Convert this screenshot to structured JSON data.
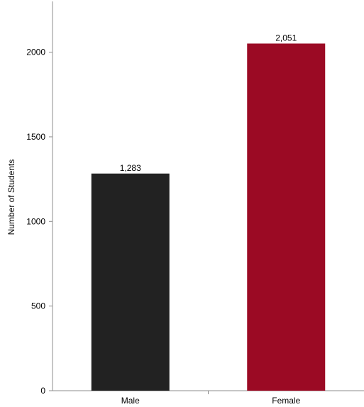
{
  "chart_data": {
    "type": "bar",
    "title": "",
    "xlabel": "",
    "ylabel": "Number of Students",
    "categories": [
      "Male",
      "Female"
    ],
    "values": [
      1283,
      2051
    ],
    "value_labels": [
      "1,283",
      "2,051"
    ],
    "bar_colors": [
      "#222222",
      "#9b0a24"
    ],
    "ylim": [
      0,
      2300
    ],
    "yticks": [
      0,
      500,
      1000,
      1500,
      2000
    ],
    "ytick_labels": [
      "0",
      "500",
      "1000",
      "1500",
      "2000"
    ],
    "grid": false,
    "legend": "none"
  }
}
